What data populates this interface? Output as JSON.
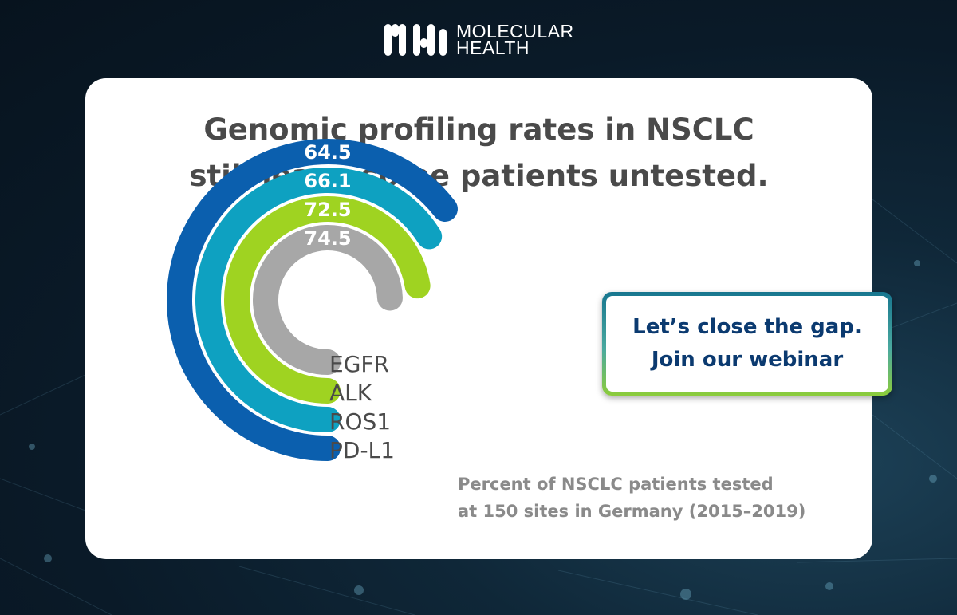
{
  "brand": {
    "line1": "MOLECULAR",
    "line2": "HEALTH"
  },
  "headline": {
    "line1": "Genomic profiling rates in NSCLC",
    "line2": "still leave some patients untested."
  },
  "cta": {
    "line1": "Let’s close the gap.",
    "line2": "Join our webinar"
  },
  "caption": {
    "line1": "Percent of NSCLC patients tested",
    "line2": "at 150 sites in Germany (2015–2019)"
  },
  "colors": {
    "egfr": "#a7a7a7",
    "alk": "#9fd321",
    "ros1": "#0ea1c1",
    "pdl1": "#0b5fae",
    "headline": "#4a4a4a",
    "cta_text": "#0b3a70"
  },
  "chart_data": {
    "type": "bar",
    "variant": "radial",
    "categories": [
      "EGFR",
      "ALK",
      "ROS1",
      "PD-L1"
    ],
    "values": [
      74.5,
      72.5,
      66.1,
      64.5
    ],
    "value_labels": [
      "74.5",
      "72.5",
      "66.1",
      "64.5"
    ],
    "series_colors": [
      "#a7a7a7",
      "#9fd321",
      "#0ea1c1",
      "#0b5fae"
    ]
  }
}
